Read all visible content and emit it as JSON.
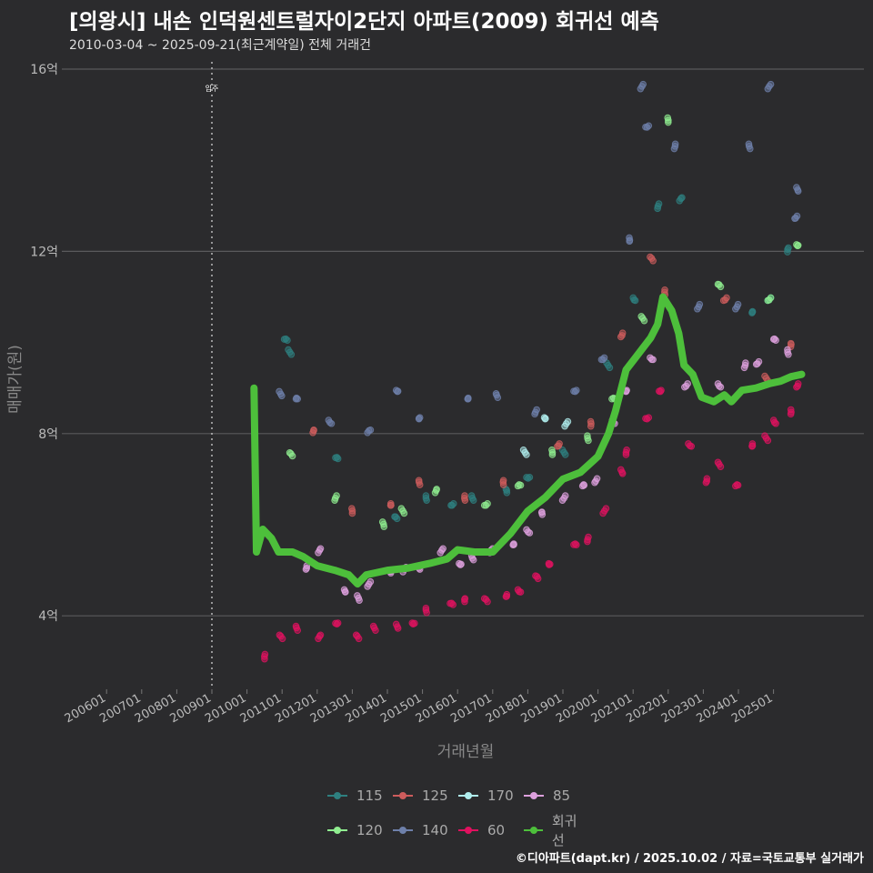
{
  "title": "[의왕시] 내손 인덕원센트럴자이2단지 아파트(2009) 회귀선 예측",
  "subtitle": "2010-03-04 ~ 2025-09-21(최근계약일) 전체 거래건",
  "footer": "©디아파트(dapt.kr) / 2025.10.02 / 자료=국토교통부 실거래가",
  "chart_data": {
    "type": "scatter",
    "xlabel": "거래년월",
    "ylabel": "매매가(원)",
    "ylim": [
      2,
      16.2
    ],
    "xlim": [
      2005.3,
      2026.3
    ],
    "y_ticks": [
      {
        "v": 4,
        "label": "4억"
      },
      {
        "v": 8,
        "label": "8억"
      },
      {
        "v": 12,
        "label": "12억"
      },
      {
        "v": 16,
        "label": "16억"
      }
    ],
    "x_ticks": [
      {
        "v": 2006,
        "label": "200601"
      },
      {
        "v": 2007,
        "label": "200701"
      },
      {
        "v": 2008,
        "label": "200801"
      },
      {
        "v": 2009,
        "label": "200901"
      },
      {
        "v": 2010,
        "label": "201001"
      },
      {
        "v": 2011,
        "label": "201101"
      },
      {
        "v": 2012,
        "label": "201201"
      },
      {
        "v": 2013,
        "label": "201301"
      },
      {
        "v": 2014,
        "label": "201401"
      },
      {
        "v": 2015,
        "label": "201501"
      },
      {
        "v": 2016,
        "label": "201601"
      },
      {
        "v": 2017,
        "label": "201701"
      },
      {
        "v": 2018,
        "label": "201801"
      },
      {
        "v": 2019,
        "label": "201901"
      },
      {
        "v": 2020,
        "label": "202001"
      },
      {
        "v": 2021,
        "label": "202101"
      },
      {
        "v": 2022,
        "label": "202201"
      },
      {
        "v": 2023,
        "label": "202301"
      },
      {
        "v": 2024,
        "label": "202401"
      },
      {
        "v": 2025,
        "label": "202501"
      }
    ],
    "annotation": {
      "x": 2009.0,
      "label": "입주"
    },
    "series": [
      {
        "name": "115",
        "color": "#2e8080",
        "points": [
          [
            2011.1,
            10.0
          ],
          [
            2011.2,
            9.8
          ],
          [
            2012.5,
            7.4
          ],
          [
            2014.3,
            6.1
          ],
          [
            2015.2,
            6.6
          ],
          [
            2015.9,
            6.5
          ],
          [
            2016.5,
            6.6
          ],
          [
            2017.3,
            6.7
          ],
          [
            2018,
            7.1
          ],
          [
            2019,
            7.6
          ],
          [
            2020.3,
            9.5
          ],
          [
            2021.1,
            11.0
          ],
          [
            2021.8,
            13.0
          ],
          [
            2022.3,
            13.1
          ],
          [
            2024.3,
            10.6
          ],
          [
            2024.9,
            11.0
          ],
          [
            2025.5,
            12.0
          ]
        ]
      },
      {
        "name": "120",
        "color": "#90ee90",
        "points": [
          [
            2011.3,
            7.5
          ],
          [
            2012.6,
            6.6
          ],
          [
            2013.8,
            6.0
          ],
          [
            2014.4,
            6.3
          ],
          [
            2015.3,
            6.7
          ],
          [
            2016.8,
            6.5
          ],
          [
            2017.8,
            6.8
          ],
          [
            2018.6,
            7.6
          ],
          [
            2019.8,
            7.9
          ],
          [
            2020.4,
            8.7
          ],
          [
            2021.3,
            10.5
          ],
          [
            2021.9,
            14.9
          ],
          [
            2023.5,
            11.2
          ],
          [
            2024.9,
            11.0
          ],
          [
            2025.6,
            12.2
          ]
        ]
      },
      {
        "name": "125",
        "color": "#cd5c5c",
        "points": [
          [
            2011.8,
            8.0
          ],
          [
            2012.9,
            6.3
          ],
          [
            2014.0,
            6.5
          ],
          [
            2015.0,
            6.9
          ],
          [
            2016.3,
            6.6
          ],
          [
            2017.4,
            6.9
          ],
          [
            2018.8,
            7.8
          ],
          [
            2019.7,
            8.2
          ],
          [
            2020.6,
            10.2
          ],
          [
            2021.5,
            11.8
          ],
          [
            2022.0,
            11.1
          ],
          [
            2023.6,
            11.0
          ],
          [
            2024.8,
            9.2
          ],
          [
            2025.4,
            9.9
          ]
        ]
      },
      {
        "name": "140",
        "color": "#6e80aa",
        "points": [
          [
            2010.9,
            8.9
          ],
          [
            2011.5,
            8.7
          ],
          [
            2012.4,
            8.3
          ],
          [
            2013.5,
            8.0
          ],
          [
            2014.2,
            9.0
          ],
          [
            2015.0,
            8.4
          ],
          [
            2016.2,
            8.7
          ],
          [
            2017.2,
            8.8
          ],
          [
            2018.3,
            8.5
          ],
          [
            2019.3,
            9.0
          ],
          [
            2020.1,
            9.7
          ],
          [
            2020.8,
            12.3
          ],
          [
            2021.2,
            15.6
          ],
          [
            2021.4,
            14.8
          ],
          [
            2022.1,
            14.3
          ],
          [
            2022.8,
            10.8
          ],
          [
            2023.9,
            10.8
          ],
          [
            2024.4,
            14.3
          ],
          [
            2024.9,
            15.6
          ],
          [
            2025.6,
            13.4
          ],
          [
            2025.7,
            12.8
          ]
        ]
      },
      {
        "name": "170",
        "color": "#b0eeee",
        "points": [
          [
            2017.9,
            7.6
          ],
          [
            2018.4,
            8.4
          ],
          [
            2019.1,
            8.2
          ]
        ]
      },
      {
        "name": "60",
        "color": "#e0115f",
        "points": [
          [
            2010.6,
            3.1
          ],
          [
            2011.0,
            3.5
          ],
          [
            2011.5,
            3.7
          ],
          [
            2012.0,
            3.5
          ],
          [
            2012.5,
            3.9
          ],
          [
            2013.2,
            3.5
          ],
          [
            2013.7,
            3.7
          ],
          [
            2014.2,
            3.8
          ],
          [
            2014.8,
            3.9
          ],
          [
            2015.2,
            4.1
          ],
          [
            2015.8,
            4.2
          ],
          [
            2016.3,
            4.3
          ],
          [
            2016.8,
            4.3
          ],
          [
            2017.3,
            4.5
          ],
          [
            2017.8,
            4.6
          ],
          [
            2018.2,
            4.8
          ],
          [
            2018.7,
            5.2
          ],
          [
            2019.3,
            5.5
          ],
          [
            2019.8,
            5.7
          ],
          [
            2020.2,
            6.3
          ],
          [
            2020.6,
            7.2
          ],
          [
            2020.9,
            7.6
          ],
          [
            2021.4,
            8.4
          ],
          [
            2021.7,
            9.0
          ],
          [
            2022.6,
            7.8
          ],
          [
            2023.0,
            7.0
          ],
          [
            2023.5,
            7.3
          ],
          [
            2023.9,
            6.8
          ],
          [
            2024.3,
            7.8
          ],
          [
            2024.8,
            7.9
          ],
          [
            2025.1,
            8.3
          ],
          [
            2025.4,
            8.5
          ],
          [
            2025.6,
            9.1
          ]
        ]
      },
      {
        "name": "85",
        "color": "#dda0dd",
        "points": [
          [
            2011.6,
            5.1
          ],
          [
            2012.0,
            5.4
          ],
          [
            2012.7,
            4.6
          ],
          [
            2013.1,
            4.4
          ],
          [
            2013.5,
            4.7
          ],
          [
            2014.0,
            4.9
          ],
          [
            2014.5,
            5.0
          ],
          [
            2015.0,
            5.1
          ],
          [
            2015.5,
            5.4
          ],
          [
            2016.0,
            5.2
          ],
          [
            2016.5,
            5.3
          ],
          [
            2017.0,
            5.4
          ],
          [
            2017.5,
            5.5
          ],
          [
            2018.0,
            5.9
          ],
          [
            2018.5,
            6.2
          ],
          [
            2019.0,
            6.6
          ],
          [
            2019.5,
            6.8
          ],
          [
            2020.0,
            7.0
          ],
          [
            2020.5,
            8.3
          ],
          [
            2020.9,
            9.0
          ],
          [
            2021.5,
            9.7
          ],
          [
            2022.5,
            9.1
          ],
          [
            2023.5,
            9.1
          ],
          [
            2024.1,
            9.5
          ],
          [
            2024.6,
            9.6
          ],
          [
            2025.1,
            10.0
          ],
          [
            2025.5,
            9.8
          ]
        ]
      }
    ],
    "regression": {
      "name": "회귀선",
      "color": "#4dbf3b",
      "points": [
        [
          2010.2,
          9.0
        ],
        [
          2010.27,
          5.4
        ],
        [
          2010.45,
          5.9
        ],
        [
          2010.7,
          5.7
        ],
        [
          2010.9,
          5.4
        ],
        [
          2011.3,
          5.4
        ],
        [
          2011.6,
          5.3
        ],
        [
          2012.0,
          5.1
        ],
        [
          2012.5,
          5.0
        ],
        [
          2012.9,
          4.9
        ],
        [
          2013.15,
          4.7
        ],
        [
          2013.4,
          4.9
        ],
        [
          2014.0,
          5.0
        ],
        [
          2014.6,
          5.05
        ],
        [
          2015.2,
          5.15
        ],
        [
          2015.7,
          5.25
        ],
        [
          2016.0,
          5.45
        ],
        [
          2016.5,
          5.4
        ],
        [
          2017.0,
          5.4
        ],
        [
          2017.5,
          5.8
        ],
        [
          2018.0,
          6.3
        ],
        [
          2018.5,
          6.6
        ],
        [
          2019.0,
          7.0
        ],
        [
          2019.5,
          7.15
        ],
        [
          2020.0,
          7.5
        ],
        [
          2020.3,
          8.0
        ],
        [
          2020.5,
          8.5
        ],
        [
          2020.8,
          9.4
        ],
        [
          2021.1,
          9.7
        ],
        [
          2021.5,
          10.1
        ],
        [
          2021.7,
          10.4
        ],
        [
          2021.85,
          11.0
        ],
        [
          2022.1,
          10.7
        ],
        [
          2022.3,
          10.2
        ],
        [
          2022.45,
          9.5
        ],
        [
          2022.7,
          9.3
        ],
        [
          2022.95,
          8.8
        ],
        [
          2023.3,
          8.7
        ],
        [
          2023.6,
          8.85
        ],
        [
          2023.8,
          8.7
        ],
        [
          2024.1,
          8.95
        ],
        [
          2024.5,
          9.0
        ],
        [
          2024.9,
          9.1
        ],
        [
          2025.2,
          9.15
        ],
        [
          2025.5,
          9.25
        ],
        [
          2025.8,
          9.3
        ]
      ]
    },
    "legend_order": [
      "115",
      "125",
      "170",
      "85",
      "120",
      "140",
      "60",
      "회귀선"
    ],
    "legend_placement": "bottom"
  }
}
